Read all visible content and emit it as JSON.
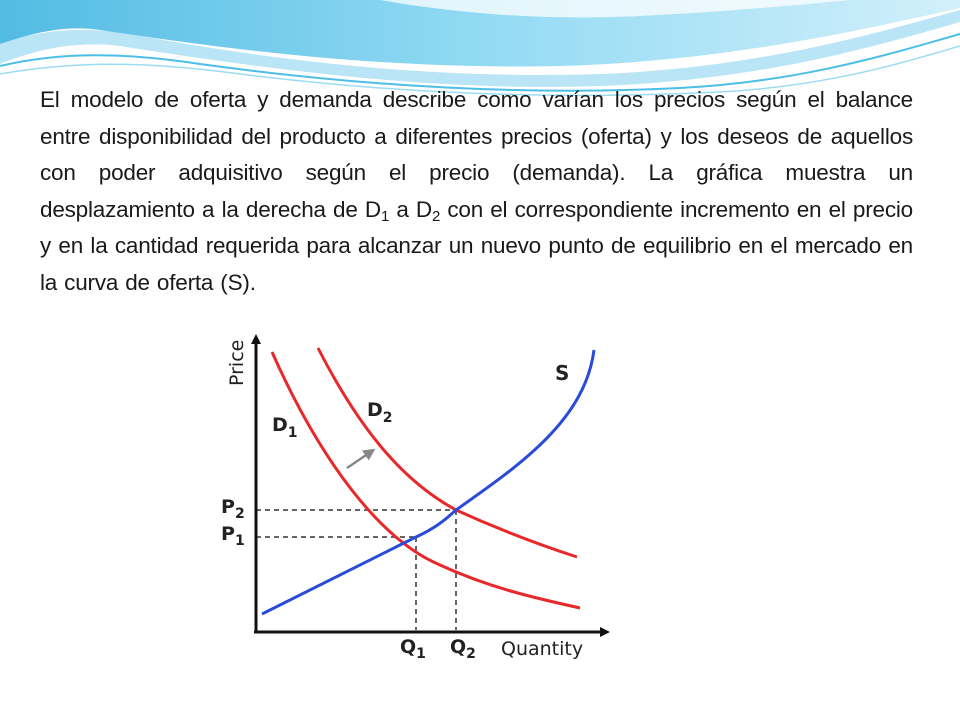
{
  "paragraph": {
    "part1": "El modelo de oferta y demanda describe como varían los precios según el balance entre disponibilidad del producto a diferentes precios (oferta) y los deseos de aquellos con poder adquisitivo según el precio (demanda). La gráfica muestra un desplazamiento a la derecha de D",
    "sub1": "1",
    "part2": " a D",
    "sub2": "2",
    "part3": " con el correspondiente incremento en el precio y en la cantidad requerida para alcanzar un nuevo punto de equilibrio en el mercado en la curva de oferta (S)."
  },
  "diagram": {
    "y_axis_label": "Price",
    "x_axis_label": "Quantity",
    "supply_label": "S",
    "demand1": {
      "main": "D",
      "sub": "1"
    },
    "demand2": {
      "main": "D",
      "sub": "2"
    },
    "p1": {
      "main": "P",
      "sub": "1"
    },
    "p2": {
      "main": "P",
      "sub": "2"
    },
    "q1": {
      "main": "Q",
      "sub": "1"
    },
    "q2": {
      "main": "Q",
      "sub": "2"
    }
  },
  "colors": {
    "supply_curve": "#2a4bd7",
    "demand_curves": "#e8282a",
    "axes": "#111111",
    "guide_lines": "#333333",
    "shift_arrow": "#888888",
    "header_wave": "#5bc8ea"
  }
}
